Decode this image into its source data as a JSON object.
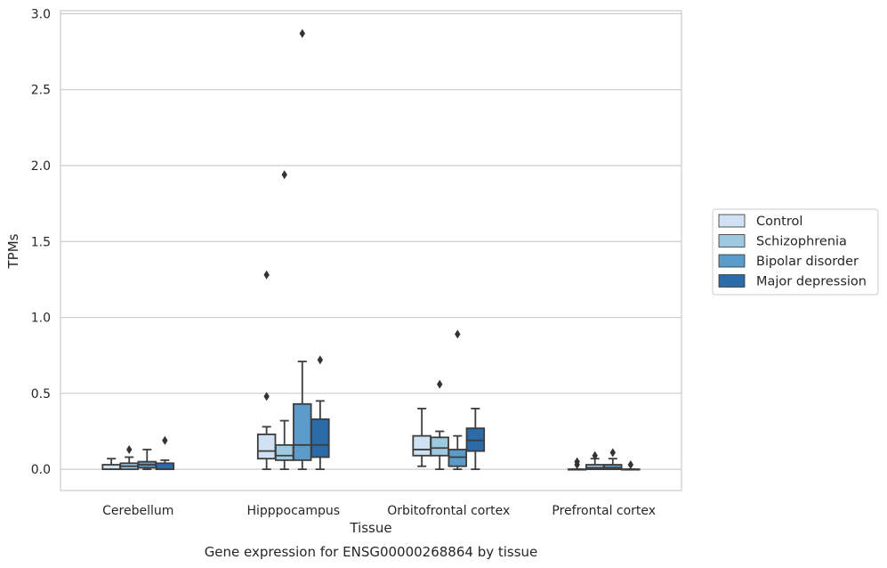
{
  "chart_data": {
    "type": "boxplot",
    "xlabel": "Tissue",
    "ylabel": "TPMs",
    "caption": "Gene expression for ENSG00000268864 by tissue",
    "ylim": [
      -0.14,
      3.02
    ],
    "yticks": [
      "0.0",
      "0.5",
      "1.0",
      "1.5",
      "2.0",
      "2.5",
      "3.0"
    ],
    "grid": "horizontal",
    "legend_position": "right",
    "categories": [
      "Cerebellum",
      "Hipppocampus",
      "Orbitofrontal cortex",
      "Prefrontal cortex"
    ],
    "series": [
      {
        "name": "Control",
        "color": "#cfe1f2",
        "boxes": [
          {
            "q1": 0.0,
            "median": 0.0,
            "q3": 0.03,
            "whisker_low": 0.0,
            "whisker_high": 0.07,
            "outliers": []
          },
          {
            "q1": 0.07,
            "median": 0.12,
            "q3": 0.23,
            "whisker_low": 0.0,
            "whisker_high": 0.28,
            "outliers": [
              0.48,
              1.28
            ]
          },
          {
            "q1": 0.09,
            "median": 0.13,
            "q3": 0.22,
            "whisker_low": 0.02,
            "whisker_high": 0.4,
            "outliers": []
          },
          {
            "q1": 0.0,
            "median": 0.0,
            "q3": 0.0,
            "whisker_low": 0.0,
            "whisker_high": 0.0,
            "outliers": [
              0.03,
              0.05
            ]
          }
        ]
      },
      {
        "name": "Schizophrenia",
        "color": "#9ecae1",
        "boxes": [
          {
            "q1": 0.0,
            "median": 0.02,
            "q3": 0.04,
            "whisker_low": 0.0,
            "whisker_high": 0.08,
            "outliers": [
              0.13
            ]
          },
          {
            "q1": 0.06,
            "median": 0.09,
            "q3": 0.16,
            "whisker_low": 0.0,
            "whisker_high": 0.32,
            "outliers": [
              1.94
            ]
          },
          {
            "q1": 0.09,
            "median": 0.14,
            "q3": 0.21,
            "whisker_low": 0.0,
            "whisker_high": 0.25,
            "outliers": [
              0.56
            ]
          },
          {
            "q1": 0.0,
            "median": 0.01,
            "q3": 0.03,
            "whisker_low": 0.0,
            "whisker_high": 0.07,
            "outliers": [
              0.09
            ]
          }
        ]
      },
      {
        "name": "Bipolar disorder",
        "color": "#5b9bc9",
        "boxes": [
          {
            "q1": 0.01,
            "median": 0.03,
            "q3": 0.05,
            "whisker_low": 0.0,
            "whisker_high": 0.13,
            "outliers": []
          },
          {
            "q1": 0.06,
            "median": 0.16,
            "q3": 0.43,
            "whisker_low": 0.0,
            "whisker_high": 0.71,
            "outliers": [
              2.87
            ]
          },
          {
            "q1": 0.02,
            "median": 0.08,
            "q3": 0.13,
            "whisker_low": 0.0,
            "whisker_high": 0.22,
            "outliers": [
              0.89
            ]
          },
          {
            "q1": 0.0,
            "median": 0.01,
            "q3": 0.03,
            "whisker_low": 0.0,
            "whisker_high": 0.07,
            "outliers": [
              0.11
            ]
          }
        ]
      },
      {
        "name": "Major depression",
        "color": "#2b6ba8",
        "boxes": [
          {
            "q1": 0.0,
            "median": 0.0,
            "q3": 0.04,
            "whisker_low": 0.0,
            "whisker_high": 0.06,
            "outliers": [
              0.19
            ]
          },
          {
            "q1": 0.08,
            "median": 0.16,
            "q3": 0.33,
            "whisker_low": 0.0,
            "whisker_high": 0.45,
            "outliers": [
              0.72
            ]
          },
          {
            "q1": 0.12,
            "median": 0.19,
            "q3": 0.27,
            "whisker_low": 0.0,
            "whisker_high": 0.4,
            "outliers": []
          },
          {
            "q1": 0.0,
            "median": 0.0,
            "q3": 0.0,
            "whisker_low": 0.0,
            "whisker_high": 0.0,
            "outliers": [
              0.03
            ]
          }
        ]
      }
    ]
  }
}
